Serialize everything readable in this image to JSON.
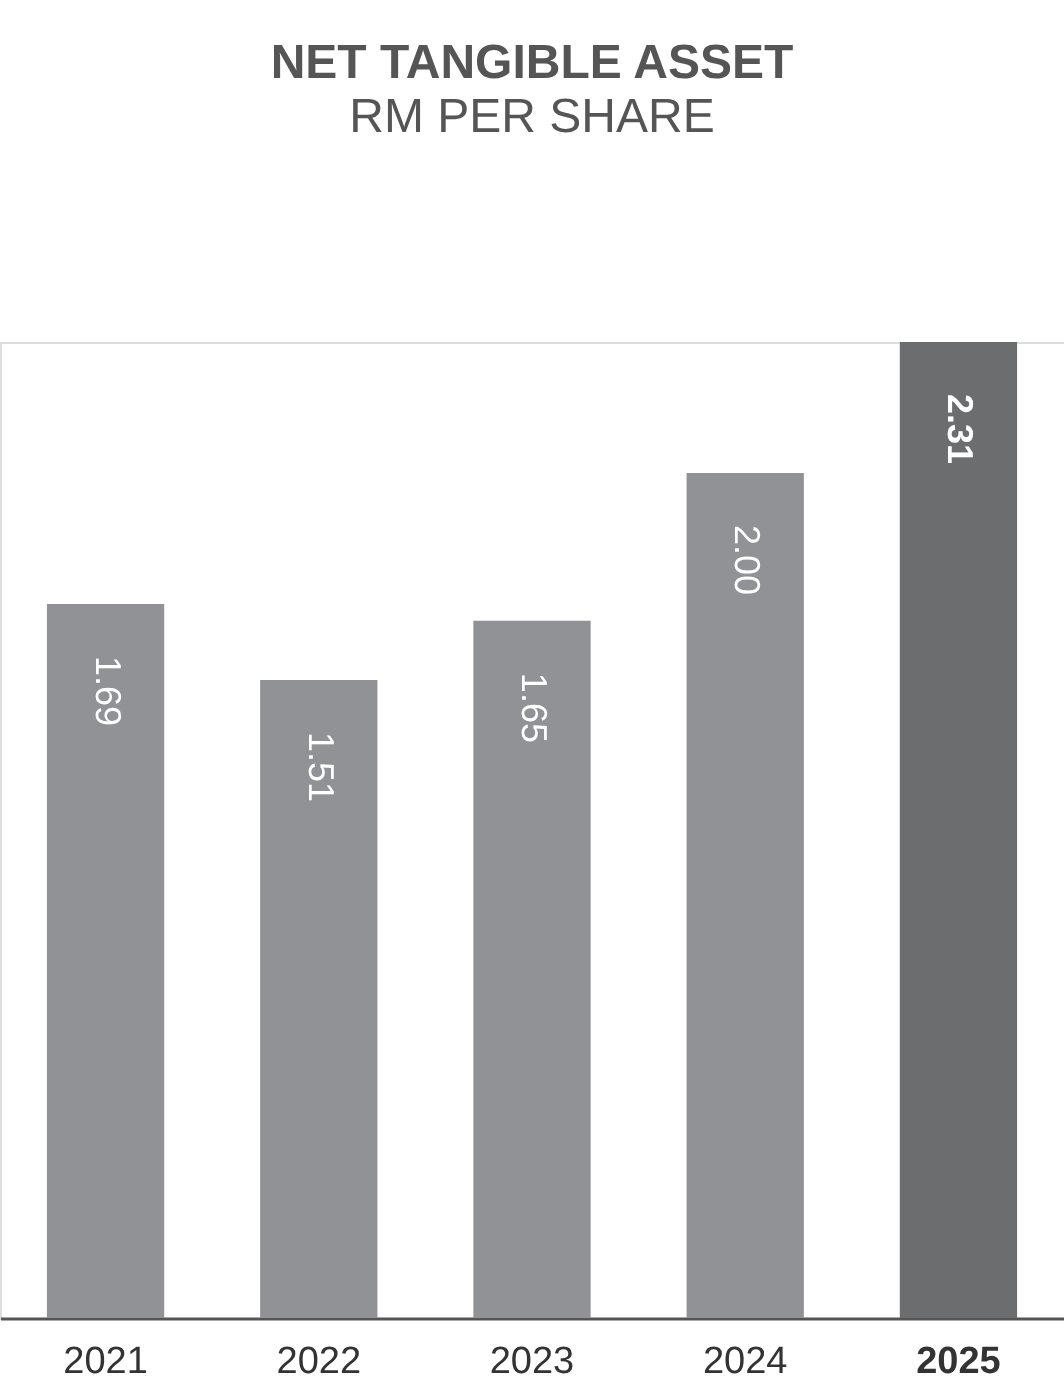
{
  "chart_data": {
    "type": "bar",
    "title": "NET TANGIBLE ASSET",
    "subtitle": "RM PER SHARE",
    "categories": [
      "2021",
      "2022",
      "2023",
      "2024",
      "2025"
    ],
    "values": [
      1.69,
      1.51,
      1.65,
      2.0,
      2.31
    ],
    "colors": [
      "#909295",
      "#909295",
      "#909295",
      "#909295",
      "#6c6d6f"
    ],
    "value_labels": [
      "1.69",
      "1.51",
      "1.65",
      "2.00",
      "2.31"
    ]
  }
}
